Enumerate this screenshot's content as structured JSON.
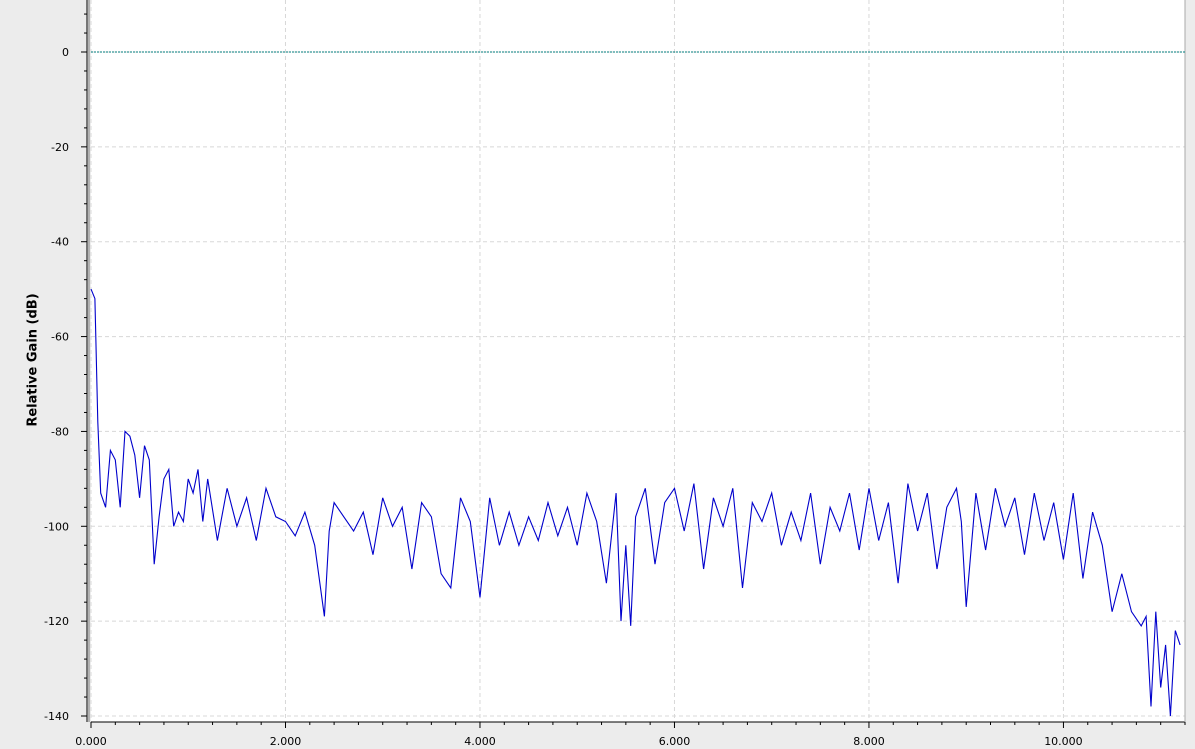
{
  "chart_data": {
    "type": "line",
    "ylabel": "Relative Gain (dB)",
    "xlabel": "",
    "xlim": [
      0,
      11250
    ],
    "ylim": [
      -140,
      10
    ],
    "x_ticks": [
      "0.000",
      "2.000",
      "4.000",
      "6.000",
      "8.000",
      "10.000"
    ],
    "x_tick_values": [
      0,
      2000,
      4000,
      6000,
      8000,
      10000
    ],
    "y_ticks": [
      "0",
      "-20",
      "-40",
      "-60",
      "-80",
      "-100",
      "-120",
      "-140"
    ],
    "y_tick_values": [
      0,
      -20,
      -40,
      -60,
      -80,
      -100,
      -120,
      -140
    ],
    "grid": true,
    "colors": {
      "series": "#0000cc",
      "reference": "#007b7b",
      "grid": "#d8d8d8"
    },
    "series": [
      {
        "color": "#0000cc",
        "x": [
          0,
          40,
          70,
          100,
          150,
          200,
          250,
          300,
          350,
          400,
          450,
          500,
          550,
          600,
          650,
          700,
          750,
          800,
          850,
          900,
          950,
          1000,
          1050,
          1100,
          1150,
          1200,
          1300,
          1400,
          1500,
          1600,
          1700,
          1800,
          1900,
          2000,
          2100,
          2200,
          2300,
          2400,
          2450,
          2500,
          2600,
          2700,
          2800,
          2900,
          3000,
          3100,
          3200,
          3300,
          3400,
          3500,
          3600,
          3700,
          3800,
          3900,
          4000,
          4100,
          4200,
          4300,
          4400,
          4500,
          4600,
          4700,
          4800,
          4900,
          5000,
          5100,
          5200,
          5300,
          5400,
          5450,
          5500,
          5550,
          5600,
          5700,
          5800,
          5900,
          6000,
          6100,
          6200,
          6300,
          6400,
          6500,
          6600,
          6700,
          6800,
          6900,
          7000,
          7100,
          7200,
          7300,
          7400,
          7500,
          7600,
          7700,
          7800,
          7900,
          8000,
          8100,
          8200,
          8300,
          8400,
          8500,
          8600,
          8700,
          8800,
          8900,
          8950,
          9000,
          9100,
          9200,
          9300,
          9400,
          9500,
          9600,
          9700,
          9800,
          9900,
          10000,
          10100,
          10200,
          10300,
          10400,
          10500,
          10600,
          10700,
          10800,
          10850,
          10900,
          10950,
          11000,
          11050,
          11100,
          11150,
          11200
        ],
        "y": [
          -50,
          -52,
          -78,
          -93,
          -96,
          -84,
          -86,
          -96,
          -80,
          -81,
          -85,
          -94,
          -83,
          -86,
          -108,
          -98,
          -90,
          -88,
          -100,
          -97,
          -99,
          -90,
          -93,
          -88,
          -99,
          -90,
          -103,
          -92,
          -100,
          -94,
          -103,
          -92,
          -98,
          -99,
          -102,
          -97,
          -104,
          -119,
          -101,
          -95,
          -98,
          -101,
          -97,
          -106,
          -94,
          -100,
          -96,
          -109,
          -95,
          -98,
          -110,
          -113,
          -94,
          -99,
          -115,
          -94,
          -104,
          -97,
          -104,
          -98,
          -103,
          -95,
          -102,
          -96,
          -104,
          -93,
          -99,
          -112,
          -93,
          -120,
          -104,
          -121,
          -98,
          -92,
          -108,
          -95,
          -92,
          -101,
          -91,
          -109,
          -94,
          -100,
          -92,
          -113,
          -95,
          -99,
          -93,
          -104,
          -97,
          -103,
          -93,
          -108,
          -96,
          -101,
          -93,
          -105,
          -92,
          -103,
          -95,
          -112,
          -91,
          -101,
          -93,
          -109,
          -96,
          -92,
          -99,
          -117,
          -93,
          -105,
          -92,
          -100,
          -94,
          -106,
          -93,
          -103,
          -95,
          -107,
          -93,
          -111,
          -97,
          -104,
          -118,
          -110,
          -118,
          -121,
          -119,
          -138,
          -118,
          -134,
          -125,
          -140,
          -122,
          -125
        ]
      },
      {
        "color": "#007b7b",
        "x": [
          0,
          11250
        ],
        "y": [
          0,
          0
        ]
      }
    ]
  }
}
